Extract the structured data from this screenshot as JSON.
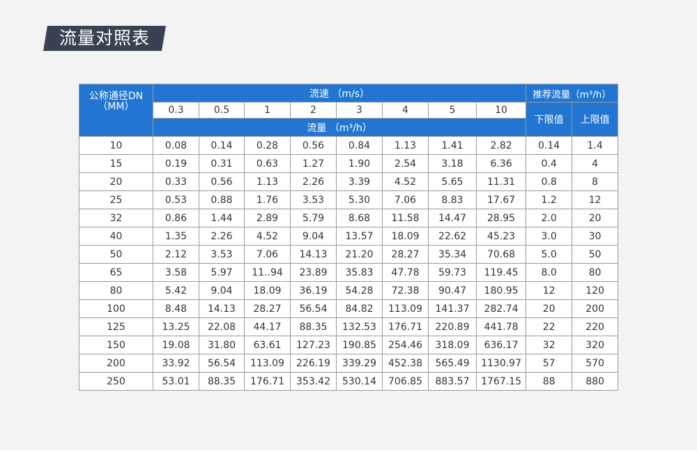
{
  "title": "流量对照表",
  "colors": {
    "header_blue": "#2276d1",
    "title_bg": "#3a4152"
  },
  "table": {
    "dn_header": "公称通径DN",
    "dn_unit": "（MM）",
    "velocity_header": "流速 （m/s）",
    "velocities": [
      "0.3",
      "0.5",
      "1",
      "2",
      "3",
      "4",
      "5",
      "10"
    ],
    "flow_header": "流量 （m³/h）",
    "recommended_header": "推荐流量（m³/h）",
    "lower_label": "下限值",
    "upper_label": "上限值",
    "rows": [
      [
        "10",
        "0.08",
        "0.14",
        "0.28",
        "0.56",
        "0.84",
        "1.13",
        "1.41",
        "2.82",
        "0.14",
        "1.4"
      ],
      [
        "15",
        "0.19",
        "0.31",
        "0.63",
        "1.27",
        "1.90",
        "2.54",
        "3.18",
        "6.36",
        "0.4",
        "4"
      ],
      [
        "20",
        "0.33",
        "0.56",
        "1.13",
        "2.26",
        "3.39",
        "4.52",
        "5.65",
        "11.31",
        "0.8",
        "8"
      ],
      [
        "25",
        "0.53",
        "0.88",
        "1.76",
        "3.53",
        "5.30",
        "7.06",
        "8.83",
        "17.67",
        "1.2",
        "12"
      ],
      [
        "32",
        "0.86",
        "1.44",
        "2.89",
        "5.79",
        "8.68",
        "11.58",
        "14.47",
        "28.95",
        "2.0",
        "20"
      ],
      [
        "40",
        "1.35",
        "2.26",
        "4.52",
        "9.04",
        "13.57",
        "18.09",
        "22.62",
        "45.23",
        "3.0",
        "30"
      ],
      [
        "50",
        "2.12",
        "3.53",
        "7.06",
        "14.13",
        "21.20",
        "28.27",
        "35.34",
        "70.68",
        "5.0",
        "50"
      ],
      [
        "65",
        "3.58",
        "5.97",
        "11..94",
        "23.89",
        "35.83",
        "47.78",
        "59.73",
        "119.45",
        "8.0",
        "80"
      ],
      [
        "80",
        "5.42",
        "9.04",
        "18.09",
        "36.19",
        "54.28",
        "72.38",
        "90.47",
        "180.95",
        "12",
        "120"
      ],
      [
        "100",
        "8.48",
        "14.13",
        "28.27",
        "56.54",
        "84.82",
        "113.09",
        "141.37",
        "282.74",
        "20",
        "200"
      ],
      [
        "125",
        "13.25",
        "22.08",
        "44.17",
        "88.35",
        "132.53",
        "176.71",
        "220.89",
        "441.78",
        "22",
        "220"
      ],
      [
        "150",
        "19.08",
        "31.80",
        "63.61",
        "127.23",
        "190.85",
        "254.46",
        "318.09",
        "636.17",
        "32",
        "320"
      ],
      [
        "200",
        "33.92",
        "56.54",
        "113.09",
        "226.19",
        "339.29",
        "452.38",
        "565.49",
        "1130.97",
        "57",
        "570"
      ],
      [
        "250",
        "53.01",
        "88.35",
        "176.71",
        "353.42",
        "530.14",
        "706.85",
        "883.57",
        "1767.15",
        "88",
        "880"
      ]
    ]
  }
}
